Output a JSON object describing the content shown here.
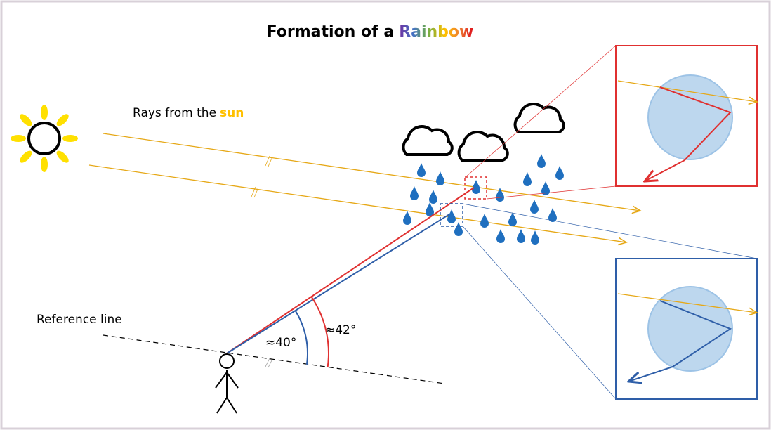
{
  "title": {
    "prefix": "Formation of a",
    "highlight": "Rainbow"
  },
  "rays_label": {
    "prefix": "Rays from the",
    "highlight": "sun"
  },
  "reference_label": "Reference line",
  "angles": {
    "inner": "≈40°",
    "outer": "≈42°"
  }
}
